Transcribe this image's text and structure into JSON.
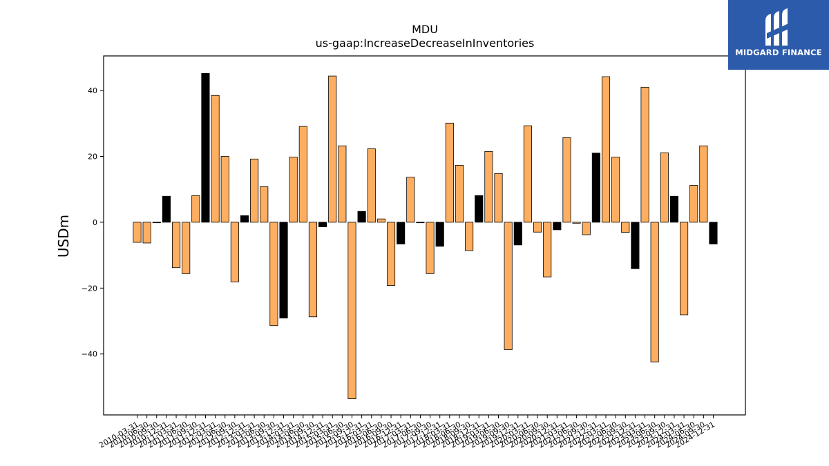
{
  "logo": {
    "brand": "MIDGARD FINANCE",
    "bg": "#2d5bab",
    "icon": "midgard-m-logo-icon"
  },
  "colors": {
    "positive": "#fdae61",
    "highlight": "#000000",
    "edge": "#000000"
  },
  "chart_data": {
    "type": "bar",
    "title": "MDU",
    "subtitle": "us-gaap:IncreaseDecreaseInInventories",
    "xlabel": "",
    "ylabel": "USDm",
    "ylim": [
      -58.5,
      50.5
    ],
    "yticks": [
      -40,
      -20,
      0,
      20,
      40
    ],
    "grid": false,
    "categories": [
      "2010-03-31",
      "2010-06-30",
      "2010-09-30",
      "2010-12-31",
      "2011-03-31",
      "2011-06-30",
      "2011-09-30",
      "2011-12-31",
      "2012-03-31",
      "2012-06-30",
      "2012-09-30",
      "2012-12-31",
      "2013-03-31",
      "2013-06-30",
      "2013-09-30",
      "2013-12-31",
      "2014-03-31",
      "2014-06-30",
      "2014-09-30",
      "2014-12-31",
      "2015-03-31",
      "2015-06-30",
      "2015-09-30",
      "2015-12-31",
      "2016-03-31",
      "2016-06-30",
      "2016-09-30",
      "2016-12-31",
      "2017-03-31",
      "2017-06-30",
      "2017-09-30",
      "2017-12-31",
      "2018-03-31",
      "2018-06-30",
      "2018-09-30",
      "2018-12-31",
      "2019-03-31",
      "2019-06-30",
      "2019-09-30",
      "2019-12-31",
      "2020-03-31",
      "2020-06-30",
      "2020-09-30",
      "2020-12-31",
      "2021-03-31",
      "2021-06-30",
      "2021-09-30",
      "2021-12-31",
      "2022-03-31",
      "2022-06-30",
      "2022-09-30",
      "2022-12-31",
      "2023-03-31",
      "2023-06-30",
      "2023-09-30",
      "2023-12-31",
      "2024-03-31",
      "2024-06-30",
      "2024-09-30",
      "2024-12-31"
    ],
    "values": [
      -6.1,
      -6.3,
      0.0,
      7.9,
      -13.8,
      -15.6,
      8.1,
      45.2,
      38.5,
      20.0,
      -18.1,
      2.0,
      19.2,
      10.8,
      -31.4,
      -29.1,
      19.8,
      29.1,
      -28.7,
      -1.4,
      44.4,
      23.2,
      -53.6,
      3.3,
      22.3,
      1.0,
      -19.2,
      -6.6,
      13.7,
      0.0,
      -15.6,
      -7.3,
      30.1,
      17.3,
      -8.6,
      8.1,
      21.5,
      14.8,
      -38.7,
      -6.9,
      29.3,
      -3.0,
      -16.6,
      -2.3,
      25.7,
      -0.3,
      -3.8,
      21.0,
      44.2,
      19.8,
      -3.1,
      -14.1,
      41.0,
      -42.4,
      21.1,
      7.9,
      -28.1,
      11.2,
      23.2,
      -6.6
    ],
    "highlighted": [
      false,
      false,
      false,
      true,
      false,
      false,
      false,
      true,
      false,
      false,
      false,
      true,
      false,
      false,
      false,
      true,
      false,
      false,
      false,
      true,
      false,
      false,
      false,
      true,
      false,
      false,
      false,
      true,
      false,
      false,
      false,
      true,
      false,
      false,
      false,
      true,
      false,
      false,
      false,
      true,
      false,
      false,
      false,
      true,
      false,
      false,
      false,
      true,
      false,
      false,
      false,
      true,
      false,
      false,
      false,
      true,
      false,
      false,
      false,
      true
    ]
  }
}
